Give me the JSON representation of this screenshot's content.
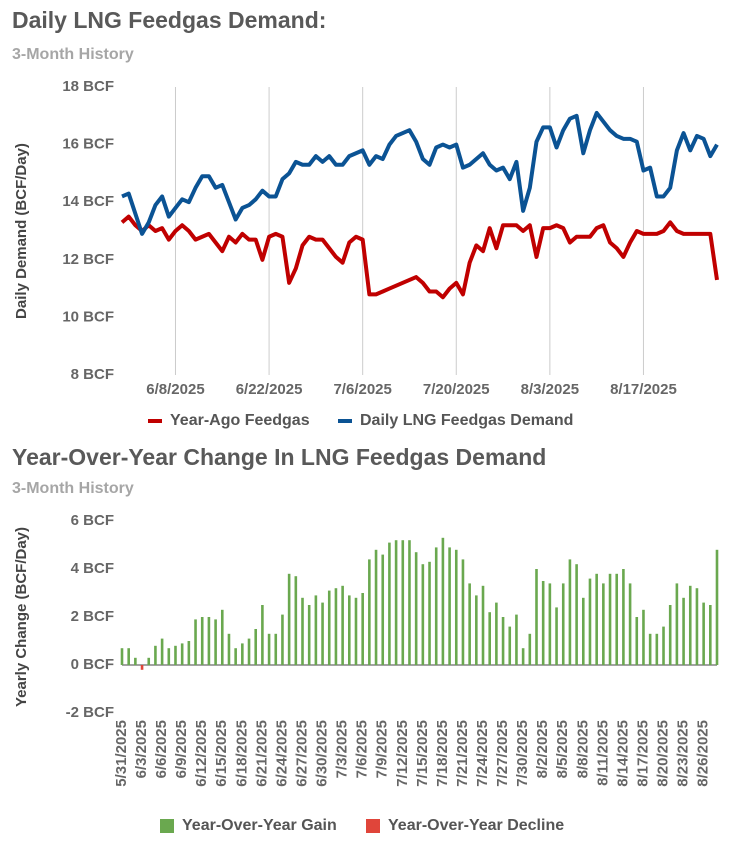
{
  "chart_data": [
    {
      "type": "line",
      "title": "Daily LNG Feedgas Demand:",
      "subtitle": "3-Month History",
      "y_label": "Daily Demand (BCF/Day)",
      "categories": [
        null,
        null,
        null,
        null,
        null,
        null,
        null,
        null,
        "6/8/2025",
        null,
        null,
        null,
        null,
        null,
        null,
        null,
        null,
        null,
        null,
        null,
        null,
        null,
        "6/22/2025",
        null,
        null,
        null,
        null,
        null,
        null,
        null,
        null,
        null,
        null,
        null,
        null,
        null,
        "7/6/2025",
        null,
        null,
        null,
        null,
        null,
        null,
        null,
        null,
        null,
        null,
        null,
        null,
        null,
        "7/20/2025",
        null,
        null,
        null,
        null,
        null,
        null,
        null,
        null,
        null,
        null,
        null,
        null,
        null,
        "8/3/2025",
        null,
        null,
        null,
        null,
        null,
        null,
        null,
        null,
        null,
        null,
        null,
        null,
        null,
        "8/17/2025",
        null,
        null,
        null,
        null,
        null,
        null,
        null,
        null,
        null,
        null,
        null
      ],
      "series": [
        {
          "name": "Year-Ago Feedgas",
          "color": "#c00000",
          "values": [
            13.3,
            13.5,
            13.2,
            13.0,
            13.2,
            13.0,
            13.1,
            12.7,
            13.0,
            13.2,
            13.0,
            12.7,
            12.8,
            12.9,
            12.6,
            12.3,
            12.8,
            12.6,
            12.9,
            12.7,
            12.7,
            12.0,
            12.8,
            12.9,
            12.8,
            11.2,
            11.7,
            12.5,
            12.8,
            12.7,
            12.7,
            12.4,
            12.1,
            11.9,
            12.6,
            12.8,
            12.7,
            10.8,
            10.8,
            10.9,
            11.0,
            11.1,
            11.2,
            11.3,
            11.4,
            11.2,
            10.9,
            10.9,
            10.7,
            11.0,
            11.2,
            10.8,
            11.9,
            12.5,
            12.3,
            13.1,
            12.4,
            13.2,
            13.2,
            13.2,
            13.0,
            13.2,
            12.1,
            13.1,
            13.1,
            13.2,
            13.1,
            12.6,
            12.8,
            12.8,
            12.8,
            13.1,
            13.2,
            12.6,
            12.4,
            12.1,
            12.6,
            13.0,
            12.9,
            12.9,
            12.9,
            13.0,
            13.3,
            13.0,
            12.9,
            12.9,
            12.9,
            12.9,
            12.9,
            11.3
          ]
        },
        {
          "name": "Daily LNG Feedgas Demand",
          "color": "#0b5394",
          "values": [
            14.2,
            14.3,
            13.6,
            12.9,
            13.3,
            13.9,
            14.2,
            13.5,
            13.8,
            14.1,
            14.0,
            14.5,
            14.9,
            14.9,
            14.5,
            14.6,
            14.0,
            13.4,
            13.8,
            13.9,
            14.1,
            14.4,
            14.2,
            14.2,
            14.8,
            15.0,
            15.4,
            15.3,
            15.3,
            15.6,
            15.4,
            15.6,
            15.3,
            15.3,
            15.6,
            15.7,
            15.8,
            15.3,
            15.6,
            15.5,
            16.0,
            16.3,
            16.4,
            16.5,
            16.1,
            15.5,
            15.3,
            15.9,
            16.0,
            15.9,
            16.0,
            15.2,
            15.3,
            15.5,
            15.7,
            15.3,
            15.1,
            15.2,
            14.8,
            15.4,
            13.7,
            14.5,
            16.1,
            16.6,
            16.6,
            15.9,
            16.5,
            16.9,
            17.0,
            15.7,
            16.5,
            17.1,
            16.8,
            16.5,
            16.3,
            16.2,
            16.2,
            16.1,
            15.1,
            15.2,
            14.2,
            14.2,
            14.5,
            15.8,
            16.4,
            15.8,
            16.3,
            16.2,
            15.6,
            16.0
          ]
        }
      ],
      "ylim": [
        8,
        18
      ],
      "yticks": [
        {
          "value": 8,
          "label": "8 BCF"
        },
        {
          "value": 10,
          "label": "10 BCF"
        },
        {
          "value": 12,
          "label": "12 BCF"
        },
        {
          "value": 14,
          "label": "14 BCF"
        },
        {
          "value": 16,
          "label": "16 BCF"
        },
        {
          "value": 18,
          "label": "18 BCF"
        }
      ],
      "x_grid": true,
      "legend": "bottom"
    },
    {
      "type": "bar",
      "title": "Year-Over-Year Change In LNG Feedgas Demand",
      "subtitle": "3-Month History",
      "y_label": "Yearly Change (BCF/Day)",
      "categories": [
        "5/31/2025",
        null,
        null,
        "6/3/2025",
        null,
        null,
        "6/6/2025",
        null,
        null,
        "6/9/2025",
        null,
        null,
        "6/12/2025",
        null,
        null,
        "6/15/2025",
        null,
        null,
        "6/18/2025",
        null,
        null,
        "6/21/2025",
        null,
        null,
        "6/24/2025",
        null,
        null,
        "6/27/2025",
        null,
        null,
        "6/30/2025",
        null,
        null,
        "7/3/2025",
        null,
        null,
        "7/6/2025",
        null,
        null,
        "7/9/2025",
        null,
        null,
        "7/12/2025",
        null,
        null,
        "7/15/2025",
        null,
        null,
        "7/18/2025",
        null,
        null,
        "7/21/2025",
        null,
        null,
        "7/24/2025",
        null,
        null,
        "7/27/2025",
        null,
        null,
        "7/30/2025",
        null,
        null,
        "8/2/2025",
        null,
        null,
        "8/5/2025",
        null,
        null,
        "8/8/2025",
        null,
        null,
        "8/11/2025",
        null,
        null,
        "8/14/2025",
        null,
        null,
        "8/17/2025",
        null,
        null,
        "8/20/2025",
        null,
        null,
        "8/23/2025",
        null,
        null,
        "8/26/2025",
        null,
        null
      ],
      "series": [
        {
          "name": "Year-Over-Year Gain",
          "color": "#6aa84f",
          "values": [
            0.7,
            0.7,
            0.3,
            null,
            0.3,
            0.8,
            1.1,
            0.7,
            0.8,
            0.9,
            1.0,
            1.9,
            2.0,
            2.0,
            1.9,
            2.3,
            1.3,
            0.7,
            0.9,
            1.1,
            1.5,
            2.5,
            1.3,
            1.3,
            2.1,
            3.8,
            3.7,
            2.8,
            2.5,
            2.9,
            2.6,
            3.1,
            3.2,
            3.3,
            2.9,
            2.8,
            3.0,
            4.4,
            4.8,
            4.6,
            5.1,
            5.2,
            5.2,
            5.2,
            4.7,
            4.2,
            4.3,
            4.9,
            5.3,
            4.9,
            4.8,
            4.4,
            3.4,
            2.9,
            3.3,
            2.2,
            2.6,
            2.0,
            1.6,
            2.1,
            0.7,
            1.3,
            4.0,
            3.5,
            3.4,
            2.4,
            3.4,
            4.4,
            4.2,
            2.8,
            3.6,
            3.8,
            3.4,
            3.8,
            3.8,
            4.0,
            3.4,
            2.0,
            2.3,
            1.3,
            1.3,
            1.6,
            2.5,
            3.4,
            2.8,
            3.3,
            3.2,
            2.6,
            2.5,
            4.8
          ]
        },
        {
          "name": "Year-Over-Year Decline",
          "color": "#e0453a",
          "values": [
            null,
            null,
            null,
            -0.2,
            null,
            null,
            null,
            null,
            null,
            null,
            null,
            null,
            null,
            null,
            null,
            null,
            null,
            null,
            null,
            null,
            null,
            null,
            null,
            null,
            null,
            null,
            null,
            null,
            null,
            null,
            null,
            null,
            null,
            null,
            null,
            null,
            null,
            null,
            null,
            null,
            null,
            null,
            null,
            null,
            null,
            null,
            null,
            null,
            null,
            null,
            null,
            null,
            null,
            null,
            null,
            null,
            null,
            null,
            null,
            null,
            null,
            null,
            null,
            null,
            null,
            null,
            null,
            null,
            null,
            null,
            null,
            null,
            null,
            null,
            null,
            null,
            null,
            null,
            null,
            null,
            null,
            null,
            null,
            null,
            null,
            null,
            null,
            null,
            null,
            null
          ]
        }
      ],
      "ylim": [
        -2,
        6
      ],
      "yticks": [
        {
          "value": -2,
          "label": "-2 BCF"
        },
        {
          "value": 0,
          "label": "0 BCF"
        },
        {
          "value": 2,
          "label": "2 BCF"
        },
        {
          "value": 4,
          "label": "4 BCF"
        },
        {
          "value": 6,
          "label": "6 BCF"
        }
      ],
      "x_grid": false,
      "legend": "bottom"
    }
  ]
}
